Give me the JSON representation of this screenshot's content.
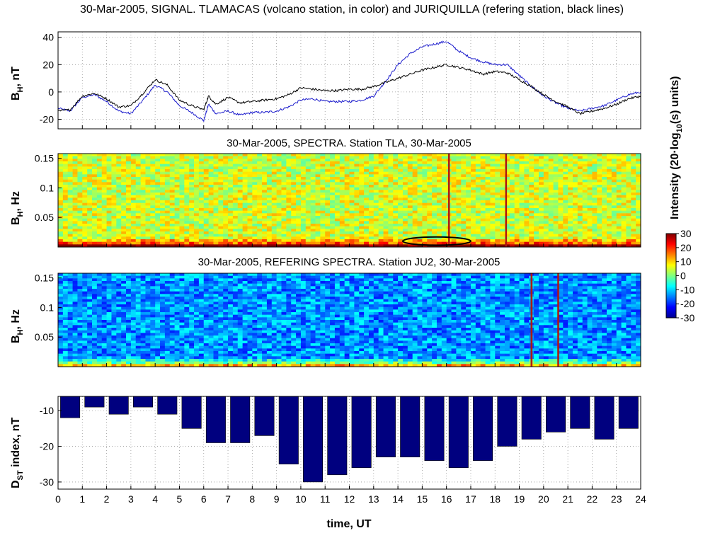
{
  "figure": {
    "main_title": "30-Mar-2005, SIGNAL. TLAMACAS (volcano station, in color) and JURIQUILLA (refering station, black lines)",
    "xlabel": "time, UT"
  },
  "colorbar": {
    "title": "Intensity (20·log",
    "title_sub": "10",
    "title_end": "(s) units)",
    "ticks": [
      "30",
      "20",
      "10",
      "0",
      "-10",
      "-20",
      "-30"
    ],
    "range": [
      -30,
      30
    ]
  },
  "panel_signal": {
    "ylabel": "B",
    "ylabel_sub": "H",
    "ylabel_end": ", nT",
    "yticks": [
      "40",
      "20",
      "0",
      "-20"
    ]
  },
  "panel_spec1": {
    "title": "30-Mar-2005, SPECTRA. Station TLA, 30-Mar-2005",
    "ylabel": "B",
    "ylabel_sub": "H",
    "ylabel_end": ", Hz",
    "yticks": [
      "0.15",
      "0.1",
      "0.05"
    ]
  },
  "panel_spec2": {
    "title": "30-Mar-2005, REFERING SPECTRA. Station JU2, 30-Mar-2005",
    "ylabel": "B",
    "ylabel_sub": "H",
    "ylabel_end": ", Hz",
    "yticks": [
      "0.15",
      "0.1",
      "0.05"
    ]
  },
  "panel_dst": {
    "ylabel": "D",
    "ylabel_sub": "ST",
    "ylabel_end": " index, nT",
    "yticks": [
      "-10",
      "-20",
      "-30"
    ]
  },
  "colors": {
    "tla": "#1c1ccc",
    "ju2": "#000000",
    "bar": "#00007f"
  },
  "chart_data": [
    {
      "type": "line",
      "title": "30-Mar-2005, SIGNAL. TLAMACAS (volcano station, in color) and JURIQUILLA (refering station, black lines)",
      "xlabel": "time, UT",
      "ylabel": "BH, nT",
      "xlim": [
        0,
        24
      ],
      "ylim": [
        -27,
        44
      ],
      "grid": true,
      "series": [
        {
          "name": "TLAMACAS (volcano station)",
          "color": "#1c1ccc",
          "x": [
            0,
            0.5,
            1,
            1.5,
            2,
            2.5,
            3,
            3.5,
            4,
            4.5,
            5,
            5.5,
            6,
            6.2,
            6.5,
            7,
            7.5,
            8,
            8.5,
            9,
            9.5,
            10,
            10.5,
            11,
            11.5,
            12,
            12.5,
            13,
            13.5,
            14,
            14.5,
            15,
            15.5,
            16,
            16.5,
            17,
            17.5,
            18,
            18.5,
            19,
            19.5,
            20,
            20.5,
            21,
            21.5,
            22,
            22.5,
            23,
            23.5,
            24
          ],
          "values": [
            -12,
            -14,
            -4,
            -2,
            -7,
            -14,
            -16,
            -6,
            5,
            0,
            -10,
            -15,
            -21,
            -9,
            -16,
            -14,
            -17,
            -15,
            -15,
            -14,
            -11,
            -6,
            -5,
            -7,
            -7,
            -7,
            -6,
            -3,
            8,
            20,
            28,
            33,
            35,
            37,
            30,
            25,
            22,
            20,
            20,
            12,
            4,
            -3,
            -8,
            -12,
            -14,
            -12,
            -10,
            -6,
            -2,
            0
          ]
        },
        {
          "name": "JURIQUILLA (refering station)",
          "color": "#000000",
          "x": [
            0,
            0.5,
            1,
            1.5,
            2,
            2.5,
            3,
            3.5,
            4,
            4.5,
            5,
            5.5,
            6,
            6.2,
            6.5,
            7,
            7.5,
            8,
            8.5,
            9,
            9.5,
            10,
            10.5,
            11,
            11.5,
            12,
            12.5,
            13,
            13.5,
            14,
            14.5,
            15,
            15.5,
            16,
            16.5,
            17,
            17.5,
            18,
            18.5,
            19,
            19.5,
            20,
            20.5,
            21,
            21.5,
            22,
            22.5,
            23,
            23.5,
            24
          ],
          "values": [
            -14,
            -13,
            -3,
            -1,
            -5,
            -11,
            -10,
            -1,
            9,
            5,
            -6,
            -10,
            -13,
            -3,
            -9,
            -4,
            -8,
            -7,
            -6,
            -5,
            -2,
            3,
            2,
            1,
            1,
            2,
            2,
            4,
            7,
            10,
            13,
            16,
            18,
            20,
            18,
            16,
            13,
            15,
            14,
            9,
            4,
            -2,
            -7,
            -11,
            -16,
            -14,
            -12,
            -9,
            -5,
            -3
          ]
        }
      ]
    },
    {
      "type": "heatmap",
      "title": "30-Mar-2005, SPECTRA. Station TLA, 30-Mar-2005",
      "xlabel": "time, UT",
      "ylabel": "BH, Hz",
      "xlim": [
        0,
        24
      ],
      "ylim": [
        0,
        0.158
      ],
      "clim": [
        -30,
        30
      ],
      "colormap": "jet",
      "description_values": "Background intensity about 0 to 10 units, rising to 20-30 units below 0.01 Hz",
      "impulse_lines_hours": [
        16.1,
        18.45
      ],
      "annotation_ellipse": {
        "center_hour": 15.6,
        "center_freq": 0.01,
        "half_width_hours": 1.4,
        "half_height_freq": 0.007
      }
    },
    {
      "type": "heatmap",
      "title": "30-Mar-2005, REFERING SPECTRA. Station JU2, 30-Mar-2005",
      "xlabel": "time, UT",
      "ylabel": "BH, Hz",
      "xlim": [
        0,
        24
      ],
      "ylim": [
        0,
        0.158
      ],
      "clim": [
        -30,
        30
      ],
      "colormap": "jet",
      "description_values": "Background intensity about -20 to -10 units, rising to 10-30 units below 0.01 Hz",
      "impulse_lines_hours": [
        19.5,
        20.6
      ]
    },
    {
      "type": "bar",
      "title": "",
      "xlabel": "time, UT",
      "ylabel": "DST index, nT",
      "xlim": [
        0,
        24
      ],
      "ylim": [
        -32,
        -6
      ],
      "grid": true,
      "categories": [
        0,
        1,
        2,
        3,
        4,
        5,
        6,
        7,
        8,
        9,
        10,
        11,
        12,
        13,
        14,
        15,
        16,
        17,
        18,
        19,
        20,
        21,
        22,
        23
      ],
      "values": [
        -12,
        -9,
        -11,
        -9,
        -11,
        -15,
        -19,
        -19,
        -17,
        -25,
        -30,
        -28,
        -26,
        -23,
        -23,
        -24,
        -26,
        -24,
        -20,
        -18,
        -16,
        -15,
        -18,
        -15
      ]
    }
  ],
  "xticks": [
    "0",
    "1",
    "2",
    "3",
    "4",
    "5",
    "6",
    "7",
    "8",
    "9",
    "10",
    "11",
    "12",
    "13",
    "14",
    "15",
    "16",
    "17",
    "18",
    "19",
    "20",
    "21",
    "22",
    "23",
    "24"
  ]
}
